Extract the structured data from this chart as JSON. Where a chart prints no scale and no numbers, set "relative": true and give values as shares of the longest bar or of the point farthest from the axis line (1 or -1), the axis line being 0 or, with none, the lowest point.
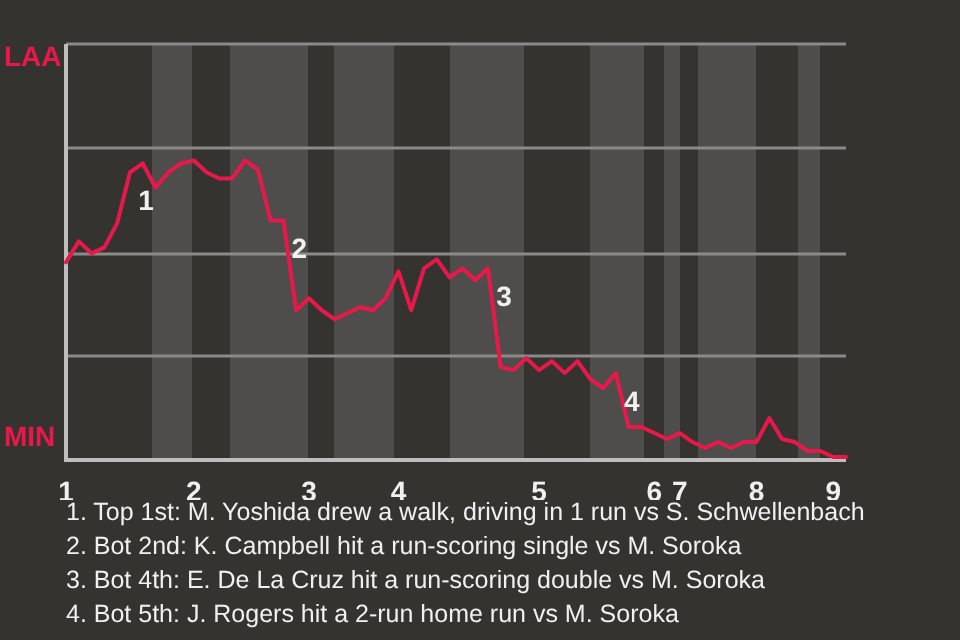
{
  "chart_data": {
    "type": "line",
    "relative": true,
    "categories": [
      "1",
      null,
      null,
      null,
      null,
      null,
      null,
      null,
      null,
      null,
      "2",
      null,
      null,
      null,
      null,
      null,
      null,
      null,
      null,
      "3",
      null,
      null,
      null,
      null,
      null,
      null,
      "4",
      null,
      null,
      null,
      null,
      null,
      null,
      null,
      null,
      null,
      null,
      "5",
      null,
      null,
      null,
      null,
      null,
      null,
      null,
      null,
      "6",
      null,
      "7",
      null,
      null,
      null,
      null,
      null,
      "8",
      null,
      null,
      null,
      null,
      null,
      "9",
      null
    ],
    "series": [
      {
        "color": "#e8194a",
        "values": [
          0.66,
          0.73,
          0.69,
          0.71,
          0.79,
          0.96,
          0.99,
          0.91,
          0.96,
          0.99,
          1,
          0.96,
          0.94,
          0.94,
          1,
          0.97,
          0.8,
          0.8,
          0.5,
          0.54,
          0.5,
          0.47,
          0.49,
          0.51,
          0.5,
          0.54,
          0.63,
          0.5,
          0.64,
          0.67,
          0.61,
          0.64,
          0.6,
          0.64,
          0.31,
          0.3,
          0.34,
          0.3,
          0.33,
          0.29,
          0.33,
          0.27,
          0.24,
          0.29,
          0.11,
          0.11,
          0.09,
          0.07,
          0.09,
          0.06,
          0.04,
          0.06,
          0.04,
          0.06,
          0.06,
          0.14,
          0.07,
          0.06,
          0.03,
          0.03,
          0.01,
          0.01
        ]
      }
    ],
    "ref_lines": [
      {
        "axis": "y",
        "value": 0.35,
        "color": "#8a8a88"
      },
      {
        "axis": "y",
        "value": 0.69,
        "color": "#8a8a88"
      },
      {
        "axis": "y",
        "value": 1.04,
        "color": "#8a8a88"
      },
      {
        "axis": "y",
        "value": 1.39,
        "color": "#8a8a88"
      }
    ],
    "legend": false,
    "marker": "none",
    "line_style": "solid",
    "annotations": [
      "LAA",
      "MIN",
      "1",
      "2",
      "3",
      "4",
      "1. Top 1st: M. Yoshida drew a walk, driving in 1 run vs S. Schwellenbach",
      "2. Bot 2nd: K. Campbell hit a run-scoring single vs M. Soroka",
      "3. Bot 4th: E. De La Cruz hit a run-scoring double vs M. Soroka",
      "4. Bot 5th: J. Rogers hit a 2-run home run vs M. Soroka"
    ]
  }
}
